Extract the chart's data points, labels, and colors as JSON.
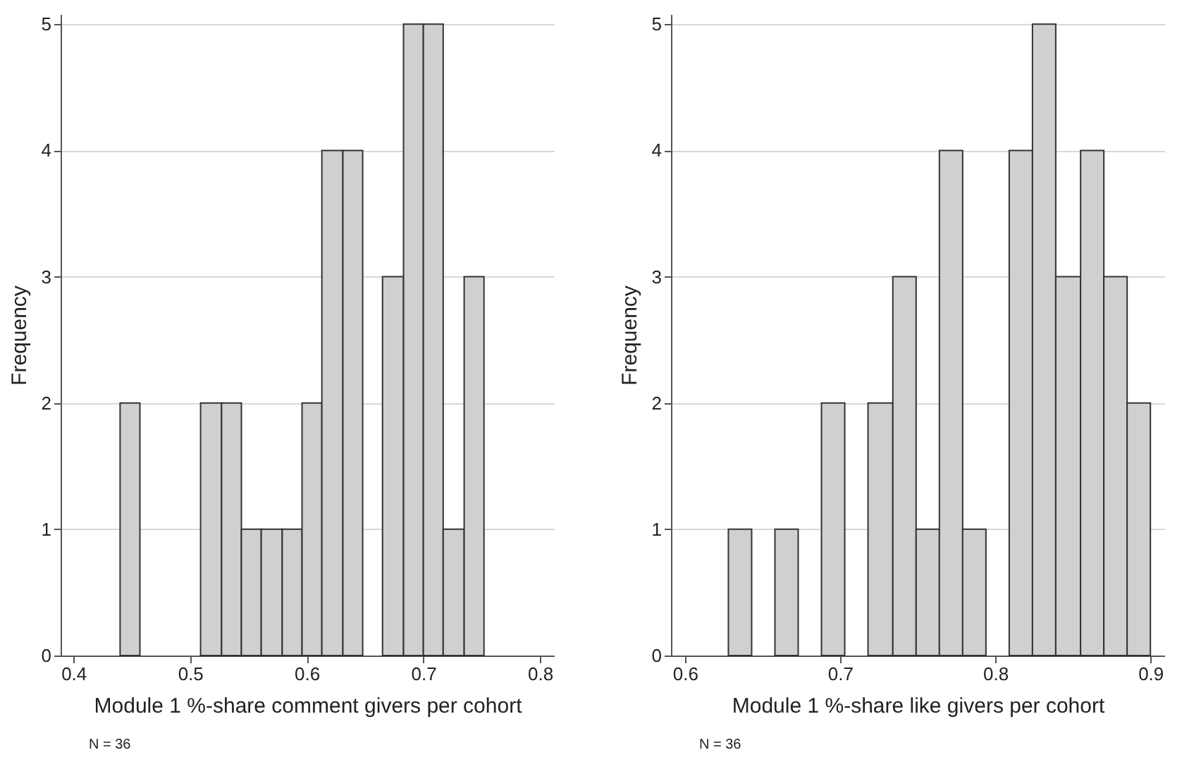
{
  "chart_data": [
    {
      "type": "histogram",
      "xlabel": "Module 1 %-share comment givers per cohort",
      "ylabel": "Frequency",
      "color": "#d0d0d0",
      "bins": [
        0.44,
        0.457,
        0.509,
        0.527,
        0.544,
        0.561,
        0.579,
        0.596,
        0.613,
        0.631,
        0.648,
        0.665,
        0.683,
        0.7,
        0.717,
        0.735,
        0.752
      ],
      "values": [
        2,
        0,
        2,
        2,
        1,
        1,
        1,
        2,
        4,
        4,
        0,
        3,
        5,
        5,
        1,
        3
      ],
      "xlim": [
        0.389,
        0.812
      ],
      "xticks": [
        {
          "value": 0.4,
          "label": "0.4"
        },
        {
          "value": 0.5,
          "label": "0.5"
        },
        {
          "value": 0.6,
          "label": "0.6"
        },
        {
          "value": 0.7,
          "label": "0.7"
        },
        {
          "value": 0.8,
          "label": "0.8"
        }
      ],
      "ylim": [
        0,
        5.08
      ],
      "yticks": [
        0,
        1,
        2,
        3,
        4,
        5
      ],
      "grid": "y",
      "annotations": [
        "N = 36"
      ]
    },
    {
      "type": "histogram",
      "xlabel": "Module 1 %-share like givers per cohort",
      "ylabel": "Frequency",
      "color": "#d0d0d0",
      "bins": [
        0.628,
        0.643,
        0.658,
        0.673,
        0.688,
        0.703,
        0.718,
        0.734,
        0.749,
        0.764,
        0.779,
        0.794,
        0.809,
        0.824,
        0.839,
        0.855,
        0.87,
        0.885,
        0.9
      ],
      "values": [
        1,
        0,
        1,
        0,
        2,
        0,
        2,
        3,
        1,
        4,
        1,
        0,
        4,
        5,
        3,
        4,
        3,
        2
      ],
      "xlim": [
        0.591,
        0.909
      ],
      "xticks": [
        {
          "value": 0.6,
          "label": "0.6"
        },
        {
          "value": 0.7,
          "label": "0.7"
        },
        {
          "value": 0.8,
          "label": "0.8"
        },
        {
          "value": 0.9,
          "label": "0.9"
        }
      ],
      "ylim": [
        0,
        5.08
      ],
      "yticks": [
        0,
        1,
        2,
        3,
        4,
        5
      ],
      "grid": "y",
      "annotations": [
        "N = 36"
      ]
    }
  ]
}
